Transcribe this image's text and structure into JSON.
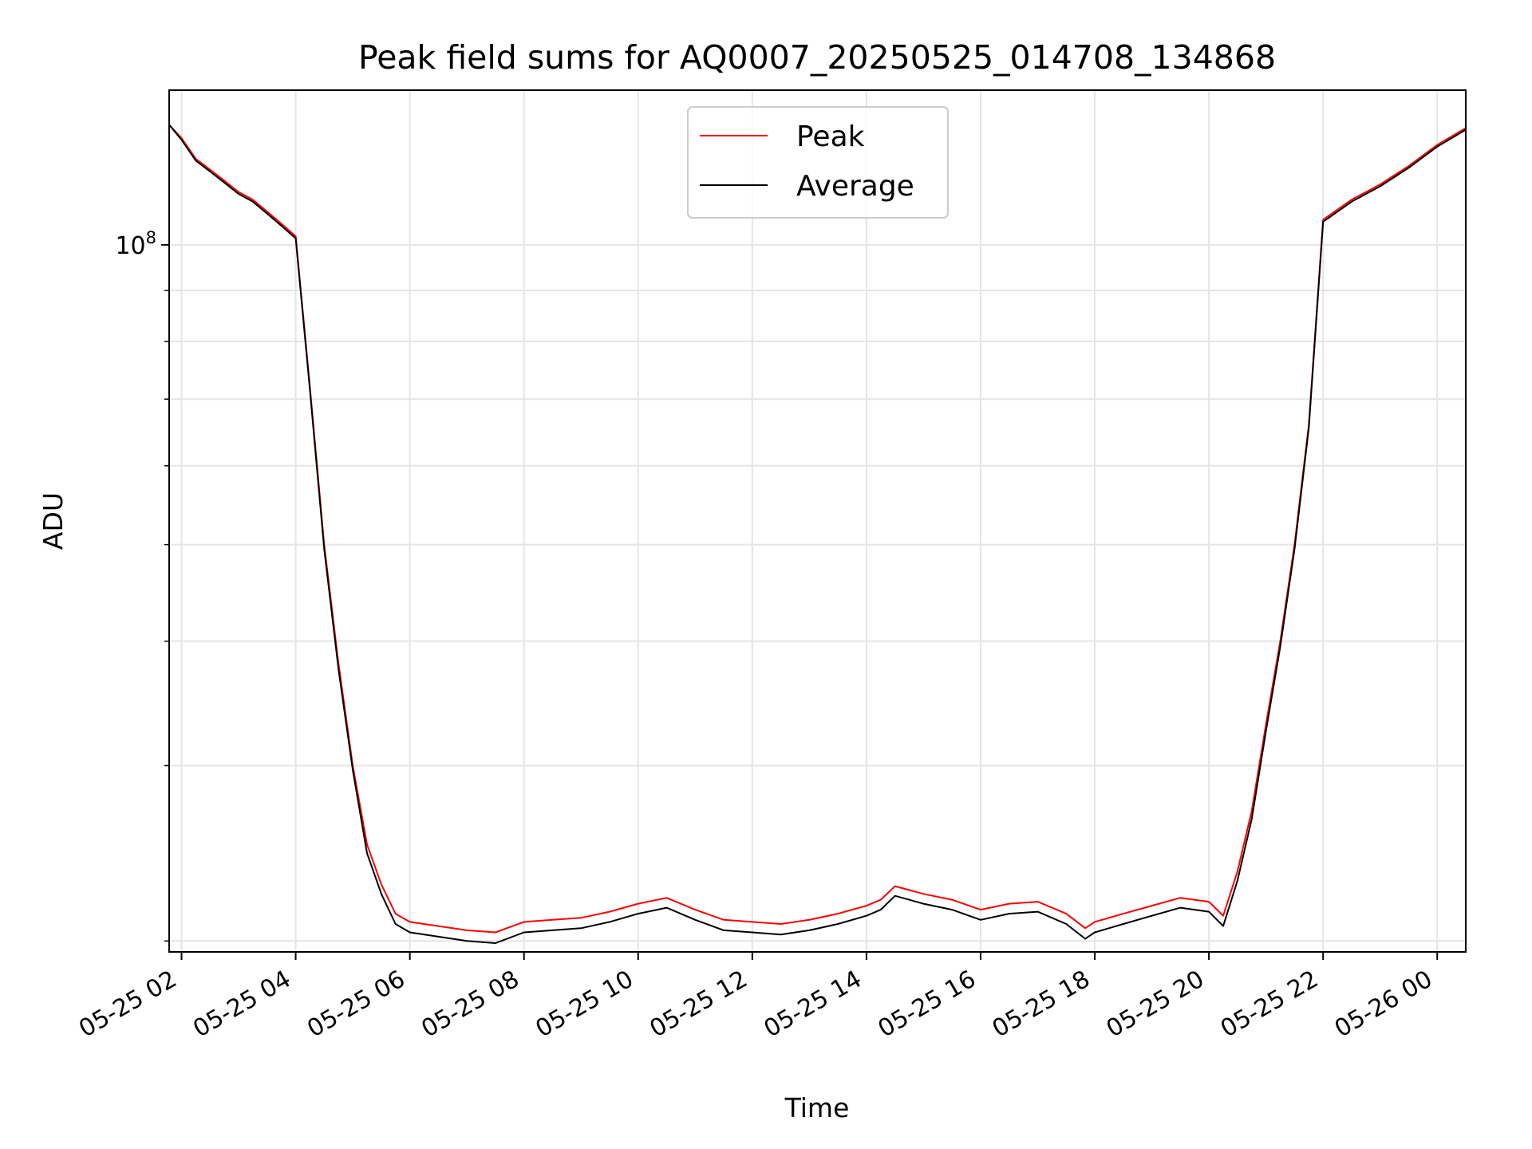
{
  "chart_data": {
    "type": "line",
    "title": "Peak field sums for AQ0007_20250525_014708_134868",
    "xlabel": "Time",
    "ylabel": "ADU",
    "y_scale": "log",
    "ylim": [
      19500000,
      143000000
    ],
    "y_major_ticks": [
      100000000
    ],
    "y_major_tick_labels": [
      "10^8"
    ],
    "y_minor_ticks": [
      20000000,
      30000000,
      40000000,
      50000000,
      60000000,
      70000000,
      80000000,
      90000000
    ],
    "x_ticks": [
      "2025-05-25 02:00",
      "2025-05-25 04:00",
      "2025-05-25 06:00",
      "2025-05-25 08:00",
      "2025-05-25 10:00",
      "2025-05-25 12:00",
      "2025-05-25 14:00",
      "2025-05-25 16:00",
      "2025-05-25 18:00",
      "2025-05-25 20:00",
      "2025-05-25 22:00",
      "2025-05-26 00:00"
    ],
    "x_tick_labels": [
      "05-25 02",
      "05-25 04",
      "05-25 06",
      "05-25 08",
      "05-25 10",
      "05-25 12",
      "05-25 14",
      "05-25 16",
      "05-25 18",
      "05-25 20",
      "05-25 22",
      "05-26 00"
    ],
    "xlim": [
      "2025-05-25 01:47",
      "2025-05-26 00:30"
    ],
    "grid": true,
    "legend_position": "upper center",
    "series": [
      {
        "name": "Peak",
        "color": "#ff0000",
        "x": [
          "2025-05-25 01:47",
          "2025-05-25 02:00",
          "2025-05-25 02:15",
          "2025-05-25 02:30",
          "2025-05-25 02:45",
          "2025-05-25 03:00",
          "2025-05-25 03:15",
          "2025-05-25 03:30",
          "2025-05-25 03:45",
          "2025-05-25 04:00",
          "2025-05-25 04:15",
          "2025-05-25 04:30",
          "2025-05-25 04:45",
          "2025-05-25 05:00",
          "2025-05-25 05:15",
          "2025-05-25 05:30",
          "2025-05-25 05:45",
          "2025-05-25 06:00",
          "2025-05-25 06:30",
          "2025-05-25 07:00",
          "2025-05-25 07:30",
          "2025-05-25 08:00",
          "2025-05-25 08:30",
          "2025-05-25 09:00",
          "2025-05-25 09:30",
          "2025-05-25 10:00",
          "2025-05-25 10:30",
          "2025-05-25 11:00",
          "2025-05-25 11:30",
          "2025-05-25 12:00",
          "2025-05-25 12:30",
          "2025-05-25 13:00",
          "2025-05-25 13:30",
          "2025-05-25 14:00",
          "2025-05-25 14:15",
          "2025-05-25 14:30",
          "2025-05-25 15:00",
          "2025-05-25 15:30",
          "2025-05-25 16:00",
          "2025-05-25 16:30",
          "2025-05-25 17:00",
          "2025-05-25 17:30",
          "2025-05-25 17:50",
          "2025-05-25 18:00",
          "2025-05-25 18:30",
          "2025-05-25 19:00",
          "2025-05-25 19:30",
          "2025-05-25 20:00",
          "2025-05-25 20:15",
          "2025-05-25 20:30",
          "2025-05-25 20:45",
          "2025-05-25 21:00",
          "2025-05-25 21:15",
          "2025-05-25 21:30",
          "2025-05-25 21:45",
          "2025-05-25 22:00",
          "2025-05-25 22:30",
          "2025-05-25 23:00",
          "2025-05-25 23:30",
          "2025-05-26 00:00",
          "2025-05-26 00:30"
        ],
        "y": [
          132000000,
          128000000,
          122000000,
          119000000,
          116000000,
          113000000,
          111000000,
          108000000,
          105000000,
          102000000,
          72000000,
          50000000,
          38000000,
          30000000,
          25000000,
          22800000,
          21300000,
          20900000,
          20700000,
          20500000,
          20400000,
          20900000,
          21000000,
          21100000,
          21400000,
          21800000,
          22100000,
          21500000,
          21000000,
          20900000,
          20800000,
          21000000,
          21300000,
          21700000,
          22000000,
          22700000,
          22300000,
          22000000,
          21500000,
          21800000,
          21900000,
          21300000,
          20600000,
          20900000,
          21300000,
          21700000,
          22100000,
          21900000,
          21200000,
          23500000,
          27000000,
          33000000,
          40000000,
          50000000,
          66000000,
          106000000,
          111000000,
          115000000,
          120000000,
          126000000,
          131000000
        ]
      },
      {
        "name": "Average",
        "color": "#000000",
        "x": [
          "2025-05-25 01:47",
          "2025-05-25 02:00",
          "2025-05-25 02:15",
          "2025-05-25 02:30",
          "2025-05-25 02:45",
          "2025-05-25 03:00",
          "2025-05-25 03:15",
          "2025-05-25 03:30",
          "2025-05-25 03:45",
          "2025-05-25 04:00",
          "2025-05-25 04:15",
          "2025-05-25 04:30",
          "2025-05-25 04:45",
          "2025-05-25 05:00",
          "2025-05-25 05:15",
          "2025-05-25 05:30",
          "2025-05-25 05:45",
          "2025-05-25 06:00",
          "2025-05-25 06:30",
          "2025-05-25 07:00",
          "2025-05-25 07:30",
          "2025-05-25 08:00",
          "2025-05-25 08:30",
          "2025-05-25 09:00",
          "2025-05-25 09:30",
          "2025-05-25 10:00",
          "2025-05-25 10:30",
          "2025-05-25 11:00",
          "2025-05-25 11:30",
          "2025-05-25 12:00",
          "2025-05-25 12:30",
          "2025-05-25 13:00",
          "2025-05-25 13:30",
          "2025-05-25 14:00",
          "2025-05-25 14:15",
          "2025-05-25 14:30",
          "2025-05-25 15:00",
          "2025-05-25 15:30",
          "2025-05-25 16:00",
          "2025-05-25 16:30",
          "2025-05-25 17:00",
          "2025-05-25 17:30",
          "2025-05-25 17:50",
          "2025-05-25 18:00",
          "2025-05-25 18:30",
          "2025-05-25 19:00",
          "2025-05-25 19:30",
          "2025-05-25 20:00",
          "2025-05-25 20:15",
          "2025-05-25 20:30",
          "2025-05-25 20:45",
          "2025-05-25 21:00",
          "2025-05-25 21:15",
          "2025-05-25 21:30",
          "2025-05-25 21:45",
          "2025-05-25 22:00",
          "2025-05-25 22:30",
          "2025-05-25 23:00",
          "2025-05-25 23:30",
          "2025-05-26 00:00",
          "2025-05-26 00:30"
        ],
        "y": [
          132000000,
          127500000,
          121500000,
          118500000,
          115500000,
          112500000,
          110500000,
          107500000,
          104500000,
          101500000,
          71500000,
          49500000,
          37500000,
          29700000,
          24500000,
          22300000,
          20800000,
          20400000,
          20200000,
          20000000,
          19900000,
          20400000,
          20500000,
          20600000,
          20900000,
          21300000,
          21600000,
          21000000,
          20500000,
          20400000,
          20300000,
          20500000,
          20800000,
          21200000,
          21500000,
          22200000,
          21800000,
          21500000,
          21000000,
          21300000,
          21400000,
          20800000,
          20100000,
          20400000,
          20800000,
          21200000,
          21600000,
          21400000,
          20700000,
          23000000,
          26500000,
          32500000,
          39500000,
          49500000,
          65500000,
          105500000,
          110500000,
          114500000,
          119500000,
          125500000,
          130500000
        ]
      }
    ]
  }
}
